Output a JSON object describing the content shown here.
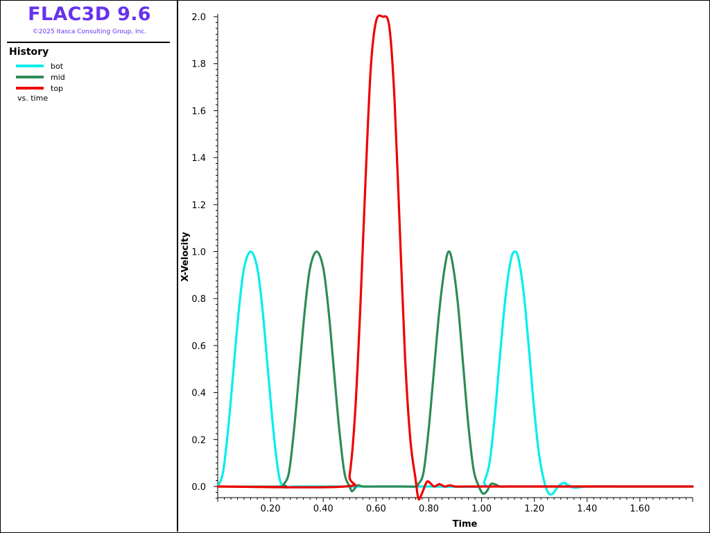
{
  "app": {
    "title": "FLAC3D 9.6",
    "copyright": "©2025 Itasca Consulting Group, Inc."
  },
  "legend": {
    "title": "History",
    "vs_label": "vs. time"
  },
  "chart_data": {
    "type": "line",
    "xlabel": "Time",
    "ylabel": "X-Velocity",
    "xlim": [
      0.0,
      1.8
    ],
    "ylim": [
      -0.05,
      2.0
    ],
    "x_ticks": [
      "0.20",
      "0.40",
      "0.60",
      "0.80",
      "1.00",
      "1.20",
      "1.40",
      "1.60"
    ],
    "x_tick_values": [
      0.2,
      0.4,
      0.6,
      0.8,
      1.0,
      1.2,
      1.4,
      1.6
    ],
    "y_ticks": [
      "0.0",
      "0.2",
      "0.4",
      "0.6",
      "0.8",
      "1.0",
      "1.2",
      "1.4",
      "1.6",
      "1.8",
      "2.0"
    ],
    "y_tick_values": [
      0.0,
      0.2,
      0.4,
      0.6,
      0.8,
      1.0,
      1.2,
      1.4,
      1.6,
      1.8,
      2.0
    ],
    "grid": false,
    "series": [
      {
        "name": "bot",
        "color": "#00eeee",
        "x": [
          0.0,
          0.02,
          0.04,
          0.06,
          0.08,
          0.1,
          0.125,
          0.15,
          0.17,
          0.19,
          0.21,
          0.23,
          0.25,
          0.3,
          0.5,
          0.8,
          1.0,
          1.01,
          1.03,
          1.05,
          1.07,
          1.09,
          1.11,
          1.125,
          1.14,
          1.16,
          1.18,
          1.2,
          1.22,
          1.24,
          1.255,
          1.27,
          1.29,
          1.31,
          1.33,
          1.35,
          1.4,
          1.5,
          1.6,
          1.8
        ],
        "y": [
          0.0,
          0.06,
          0.25,
          0.5,
          0.75,
          0.93,
          1.0,
          0.93,
          0.75,
          0.5,
          0.25,
          0.06,
          0.0,
          0.0,
          0.0,
          0.0,
          0.0,
          0.02,
          0.1,
          0.3,
          0.56,
          0.8,
          0.96,
          1.0,
          0.97,
          0.82,
          0.58,
          0.32,
          0.12,
          0.01,
          -0.03,
          -0.03,
          0.0,
          0.015,
          0.005,
          -0.005,
          0.0,
          0.0,
          0.0,
          0.0
        ]
      },
      {
        "name": "mid",
        "color": "#2e8b57",
        "x": [
          0.0,
          0.24,
          0.25,
          0.27,
          0.29,
          0.31,
          0.33,
          0.35,
          0.375,
          0.4,
          0.42,
          0.44,
          0.46,
          0.48,
          0.5,
          0.51,
          0.53,
          0.55,
          0.6,
          0.7,
          0.75,
          0.76,
          0.78,
          0.8,
          0.82,
          0.84,
          0.86,
          0.875,
          0.89,
          0.91,
          0.93,
          0.95,
          0.97,
          0.99,
          1.005,
          1.02,
          1.035,
          1.05,
          1.07,
          1.1,
          1.2,
          1.8
        ],
        "y": [
          0.0,
          0.0,
          0.01,
          0.06,
          0.25,
          0.5,
          0.75,
          0.93,
          1.0,
          0.93,
          0.75,
          0.5,
          0.25,
          0.06,
          0.0,
          -0.02,
          0.005,
          0.0,
          0.0,
          0.0,
          0.0,
          0.01,
          0.06,
          0.25,
          0.5,
          0.75,
          0.93,
          1.0,
          0.95,
          0.78,
          0.52,
          0.26,
          0.07,
          0.0,
          -0.03,
          -0.02,
          0.01,
          0.01,
          0.0,
          0.0,
          0.0,
          0.0
        ]
      },
      {
        "name": "top",
        "color": "#ee0000",
        "x": [
          0.0,
          0.48,
          0.5,
          0.52,
          0.54,
          0.56,
          0.58,
          0.6,
          0.625,
          0.65,
          0.67,
          0.69,
          0.71,
          0.73,
          0.75,
          0.76,
          0.77,
          0.79,
          0.8,
          0.82,
          0.84,
          0.86,
          0.88,
          0.9,
          0.95,
          1.0,
          1.1,
          1.2,
          1.3,
          1.4,
          1.5,
          1.6,
          1.7,
          1.8
        ],
        "y": [
          0.0,
          0.0,
          0.05,
          0.3,
          0.75,
          1.3,
          1.78,
          1.98,
          2.0,
          1.96,
          1.65,
          1.1,
          0.55,
          0.2,
          0.03,
          -0.05,
          -0.04,
          0.015,
          0.02,
          0.0,
          0.01,
          0.0,
          0.005,
          0.0,
          0.0,
          0.0,
          0.0,
          0.0,
          0.0,
          0.0,
          0.0,
          0.0,
          0.0,
          0.0
        ]
      }
    ]
  }
}
